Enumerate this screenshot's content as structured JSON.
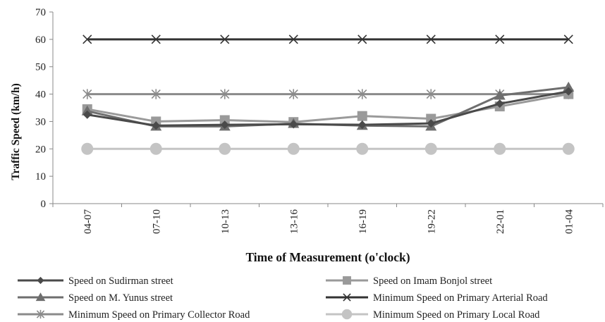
{
  "chart_data": {
    "type": "line",
    "title": "",
    "xlabel": "Time of Measurement (o'clock)",
    "ylabel": "Traffic Speed  (km/h)",
    "ylim": [
      0,
      70
    ],
    "yticks": [
      0,
      10,
      20,
      30,
      40,
      50,
      60,
      70
    ],
    "grid": false,
    "legend_position": "bottom",
    "categories": [
      "04-07",
      "07-10",
      "10-13",
      "13-16",
      "16-19",
      "19-22",
      "22-01",
      "01-04"
    ],
    "series": [
      {
        "name": "Speed on Sudirman street",
        "marker": "diamond",
        "color": "#4a4a4a",
        "values": [
          32.5,
          28.5,
          28.8,
          29.0,
          28.8,
          29.3,
          36.5,
          41.0
        ]
      },
      {
        "name": "Speed on Imam Bonjol street",
        "marker": "square",
        "color": "#9a9a9a",
        "values": [
          34.5,
          30.0,
          30.5,
          29.8,
          32.0,
          31.0,
          35.5,
          40.0
        ]
      },
      {
        "name": "Speed on M. Yunus street",
        "marker": "triangle",
        "color": "#6e6e6e",
        "values": [
          33.8,
          28.2,
          28.2,
          29.2,
          28.5,
          28.2,
          39.5,
          42.5
        ]
      },
      {
        "name": "Minimum Speed on Primary Arterial Road",
        "marker": "x",
        "color": "#333333",
        "values": [
          60,
          60,
          60,
          60,
          60,
          60,
          60,
          60
        ]
      },
      {
        "name": "Minimum Speed on Primary Collector Road",
        "marker": "star",
        "color": "#8a8a8a",
        "values": [
          40,
          40,
          40,
          40,
          40,
          40,
          40,
          40
        ]
      },
      {
        "name": "Minimum Speed on Primary Local Road",
        "marker": "circle",
        "color": "#c4c4c4",
        "values": [
          20,
          20,
          20,
          20,
          20,
          20,
          20,
          20
        ]
      }
    ]
  }
}
